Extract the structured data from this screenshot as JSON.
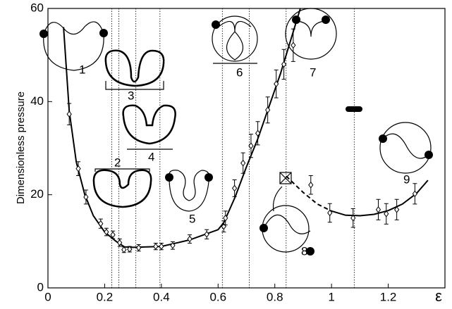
{
  "chart_data": {
    "type": "scatter",
    "ylabel": "Dimensionless pressure",
    "xlabel": "ε",
    "xlim": [
      0,
      1.4
    ],
    "ylim": [
      0,
      60
    ],
    "xticks": [
      0,
      0.2,
      0.4,
      0.6,
      0.8,
      1,
      1.2
    ],
    "yticks": [
      0,
      20,
      40,
      60
    ],
    "color": "#000000",
    "x": [
      0.075,
      0.107,
      0.134,
      0.186,
      0.206,
      0.229,
      0.253,
      0.268,
      0.288,
      0.32,
      0.38,
      0.4,
      0.44,
      0.5,
      0.56,
      0.62,
      0.626,
      0.658,
      0.688,
      0.716,
      0.74,
      0.775,
      0.805,
      0.832,
      0.865,
      0.927,
      0.994,
      1.076,
      1.165,
      1.193,
      1.23,
      1.294
    ],
    "values": [
      37.3,
      25.6,
      19.5,
      13.8,
      12.0,
      11.4,
      9.7,
      8.2,
      8.3,
      8.6,
      8.9,
      8.9,
      9.1,
      10.5,
      11.5,
      13.2,
      15.0,
      21.4,
      26.8,
      30.5,
      33.2,
      38.2,
      43.8,
      48.0,
      52.1,
      22.1,
      16.1,
      15.0,
      16.8,
      15.9,
      16.8,
      20.2
    ],
    "errors": [
      2.3,
      1.5,
      1.5,
      1.0,
      0.8,
      0.8,
      0.8,
      0.6,
      0.6,
      0.7,
      0.7,
      0.7,
      0.8,
      0.9,
      1.0,
      1.2,
      1.5,
      1.8,
      2.2,
      2.5,
      2.5,
      2.8,
      3.0,
      3.2,
      3.5,
      2.0,
      2.0,
      2.0,
      2.2,
      2.2,
      2.2,
      2.2
    ],
    "fits": [
      {
        "style": "solid",
        "x": [
          0.055,
          0.075,
          0.1,
          0.13,
          0.16,
          0.2,
          0.24,
          0.27,
          0.3,
          0.4,
          0.5,
          0.6,
          0.62,
          0.66,
          0.7,
          0.74,
          0.78,
          0.82,
          0.85,
          0.89
        ],
        "values": [
          56,
          38,
          27,
          20,
          15.5,
          12,
          10,
          8.8,
          8.7,
          8.9,
          10.3,
          12.5,
          14,
          19.5,
          26,
          32,
          39,
          46,
          52,
          60
        ]
      },
      {
        "style": "dashed",
        "x": [
          0.84,
          0.9,
          0.95,
          1.0
        ],
        "values": [
          24,
          20.5,
          18,
          16.5
        ]
      },
      {
        "style": "solid",
        "x": [
          1.0,
          1.05,
          1.1,
          1.15,
          1.2,
          1.25,
          1.3,
          1.34
        ],
        "values": [
          16.5,
          15.6,
          15.5,
          15.8,
          16.6,
          18,
          20.3,
          23.1
        ]
      }
    ],
    "reference_lines": [
      0.225,
      0.25,
      0.31,
      0.395,
      0.615,
      0.71,
      0.84,
      1.08
    ],
    "annotations": [
      "1",
      "2",
      "3",
      "4",
      "5",
      "6",
      "7",
      "8",
      "9"
    ]
  }
}
